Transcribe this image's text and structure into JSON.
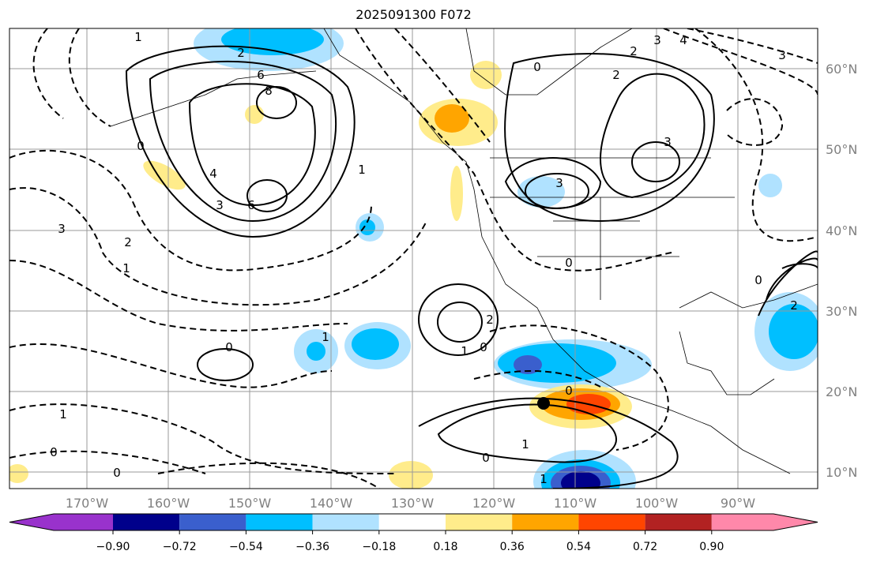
{
  "title": "2025091300 F072",
  "lon_labels": [
    "170°W",
    "160°W",
    "150°W",
    "140°W",
    "130°W",
    "120°W",
    "110°W",
    "100°W",
    "90°W"
  ],
  "lat_labels": [
    "60°N",
    "50°N",
    "40°N",
    "30°N",
    "20°N",
    "10°N"
  ],
  "colorbar": {
    "ticks": [
      "−0.90",
      "−0.72",
      "−0.54",
      "−0.36",
      "−0.18",
      "0.18",
      "0.36",
      "0.54",
      "0.72",
      "0.90"
    ],
    "colors": [
      "#9932cc",
      "#00008b",
      "#3a5fcd",
      "#00bfff",
      "#b0e2ff",
      "#ffffff",
      "#ffec8b",
      "#ffa500",
      "#ff4500",
      "#b22222",
      "#ff88aa"
    ]
  },
  "contour_labels": [
    "1",
    "2",
    "6",
    "8",
    "4",
    "3",
    "6",
    "0",
    "3",
    "2",
    "1",
    "0",
    "0",
    "2",
    "3",
    "1",
    "3",
    "0",
    "2",
    "1",
    "0",
    "0",
    "1",
    "0",
    "1",
    "1",
    "0",
    "0",
    "1",
    "3",
    "2",
    "4",
    "2",
    "3",
    "0"
  ]
}
